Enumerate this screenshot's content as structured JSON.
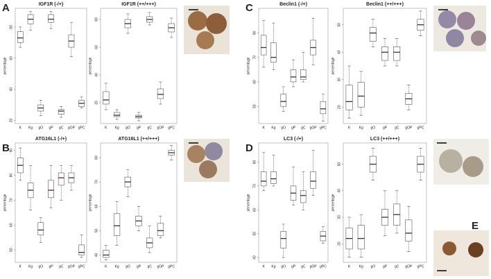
{
  "panel_labels": [
    "A",
    "B",
    "C",
    "D",
    "E"
  ],
  "chart_data": [
    {
      "type": "box",
      "title": "IGF1R (-/+)",
      "y_label": "percentage",
      "categories": [
        "K",
        "Kg",
        "gO",
        "gP",
        "gC",
        "gOP",
        "gPC"
      ],
      "color": "#555555",
      "point_color": "#cc2222",
      "min": [
        67,
        78,
        23,
        79,
        22,
        61,
        28
      ],
      "q1": [
        70,
        82,
        26,
        83,
        24,
        67,
        29
      ],
      "median": [
        73,
        85,
        28,
        85,
        26,
        71,
        31
      ],
      "q3": [
        77,
        88,
        30,
        88,
        27,
        75,
        33
      ],
      "max": [
        80,
        90,
        33,
        90,
        29,
        83,
        35
      ],
      "ylim": [
        18,
        92
      ],
      "yticks": [
        20,
        40,
        60,
        80
      ]
    },
    {
      "type": "box",
      "title": "IGF1R (++/+++)",
      "y_label": "percentage",
      "categories": [
        "K",
        "Kg",
        "gO",
        "gP",
        "gC",
        "gOP",
        "gPC"
      ],
      "color": "#555555",
      "point_color": "#cc2222",
      "min": [
        15,
        8,
        70,
        7,
        76,
        19,
        67
      ],
      "q1": [
        19,
        10,
        74,
        9,
        78,
        23,
        71
      ],
      "median": [
        22,
        11,
        77,
        10,
        80,
        26,
        74
      ],
      "q3": [
        28,
        13,
        80,
        11,
        82,
        30,
        77
      ],
      "max": [
        34,
        15,
        84,
        13,
        85,
        35,
        81
      ],
      "ylim": [
        5,
        88
      ],
      "yticks": [
        20,
        40,
        60,
        80
      ]
    },
    {
      "type": "box",
      "title": "ATG16L1 (-/+)",
      "y_label": "percentage",
      "categories": [
        "K",
        "Kg",
        "gO",
        "gP",
        "gC",
        "gOP",
        "gPC"
      ],
      "color": "#555555",
      "point_color": "#cc2222",
      "min": [
        78,
        66,
        53,
        67,
        70,
        74,
        47
      ],
      "q1": [
        81,
        71,
        56,
        71,
        76,
        77,
        48
      ],
      "median": [
        84,
        74,
        58,
        74,
        79,
        79,
        49
      ],
      "q3": [
        87,
        77,
        61,
        78,
        81,
        81,
        52
      ],
      "max": [
        91,
        84,
        63,
        84,
        84,
        84,
        56
      ],
      "ylim": [
        45,
        93
      ],
      "yticks": [
        50,
        60,
        70,
        80,
        90
      ]
    },
    {
      "type": "box",
      "title": "ATG16L1 (++/+++)",
      "y_label": "percentage",
      "categories": [
        "K",
        "Kg",
        "gO",
        "gP",
        "gC",
        "gOP",
        "gPC"
      ],
      "color": "#555555",
      "point_color": "#cc2222",
      "min": [
        38,
        44,
        64,
        50,
        41,
        47,
        79
      ],
      "q1": [
        39,
        48,
        68,
        52,
        43,
        48,
        81
      ],
      "median": [
        40,
        52,
        70,
        54,
        45,
        50,
        82
      ],
      "q3": [
        42,
        57,
        72,
        56,
        47,
        53,
        83
      ],
      "max": [
        44,
        62,
        75,
        60,
        52,
        56,
        85
      ],
      "ylim": [
        37,
        86
      ],
      "yticks": [
        40,
        50,
        60,
        70,
        80
      ]
    },
    {
      "type": "box",
      "title": "Beclin1 (-/+)",
      "y_label": "percentage",
      "categories": [
        "K",
        "Kg",
        "gO",
        "gP",
        "gC",
        "gOP",
        "gPC"
      ],
      "color": "#555555",
      "point_color": "#cc2222",
      "min": [
        66,
        65,
        48,
        58,
        60,
        67,
        44
      ],
      "q1": [
        71,
        68,
        50,
        60,
        61,
        71,
        47
      ],
      "median": [
        74,
        70,
        52,
        62,
        62,
        74,
        49
      ],
      "q3": [
        79,
        76,
        55,
        65,
        65,
        77,
        52
      ],
      "max": [
        85,
        84,
        58,
        69,
        72,
        86,
        55
      ],
      "ylim": [
        43,
        90
      ],
      "yticks": [
        50,
        60,
        70,
        80
      ]
    },
    {
      "type": "box",
      "title": "Beclin1 (++/+++)",
      "y_label": "percentage",
      "categories": [
        "K",
        "Kg",
        "gO",
        "gP",
        "gC",
        "gOP",
        "gPC"
      ],
      "color": "#555555",
      "point_color": "#cc2222",
      "min": [
        16,
        17,
        42,
        35,
        35,
        19,
        46
      ],
      "q1": [
        19,
        20,
        44,
        37,
        37,
        21,
        48
      ],
      "median": [
        22,
        24,
        47,
        40,
        40,
        23,
        50
      ],
      "q3": [
        28,
        29,
        49,
        42,
        42,
        25,
        52
      ],
      "max": [
        35,
        33,
        52,
        45,
        45,
        28,
        55
      ],
      "ylim": [
        14,
        56
      ],
      "yticks": [
        20,
        30,
        40,
        50
      ]
    },
    {
      "type": "box",
      "title": "LC3 (-/+)",
      "y_label": "percentage",
      "categories": [
        "K",
        "Kg",
        "gO",
        "gP",
        "gC",
        "gOP",
        "gPC"
      ],
      "color": "#555555",
      "point_color": "#cc2222",
      "min": [
        68,
        70,
        40,
        62,
        60,
        66,
        46
      ],
      "q1": [
        70,
        71,
        44,
        64,
        63,
        69,
        47
      ],
      "median": [
        72,
        73,
        48,
        67,
        66,
        72,
        49
      ],
      "q3": [
        76,
        76,
        51,
        70,
        68,
        76,
        51
      ],
      "max": [
        84,
        83,
        54,
        78,
        76,
        85,
        53
      ],
      "ylim": [
        38,
        88
      ],
      "yticks": [
        40,
        50,
        60,
        70,
        80
      ]
    },
    {
      "type": "box",
      "title": "LC3 (++/+++)",
      "y_label": "percentage",
      "categories": [
        "K",
        "Kg",
        "gO",
        "gP",
        "gC",
        "gOP",
        "gPC"
      ],
      "color": "#555555",
      "point_color": "#cc2222",
      "min": [
        15,
        15,
        44,
        23,
        24,
        17,
        44
      ],
      "q1": [
        18,
        18,
        47,
        27,
        27,
        21,
        47
      ],
      "median": [
        22,
        22,
        50,
        30,
        31,
        24,
        50
      ],
      "q3": [
        26,
        27,
        53,
        33,
        35,
        29,
        53
      ],
      "max": [
        30,
        31,
        56,
        40,
        40,
        34,
        56
      ],
      "ylim": [
        13,
        58
      ],
      "yticks": [
        20,
        30,
        40,
        50
      ]
    }
  ]
}
